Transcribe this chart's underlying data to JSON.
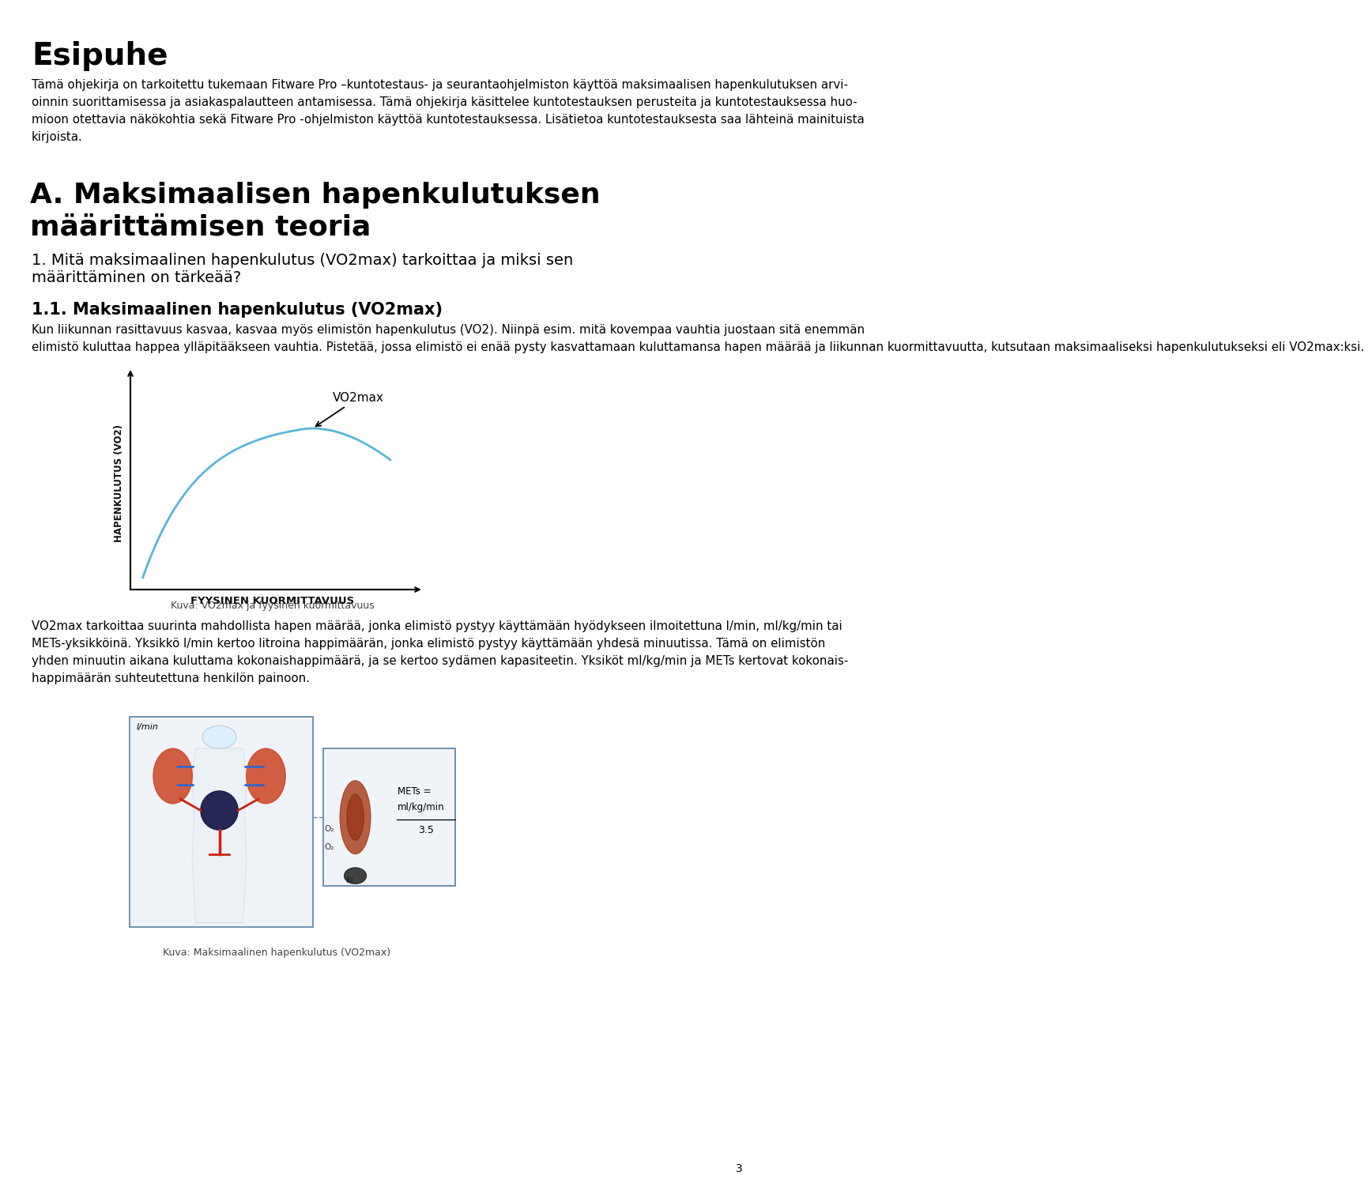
{
  "background_color": "#ffffff",
  "page_number": "3",
  "title_esipuhe": "Esipuhe",
  "para1_lines": [
    "Tämä ohjekirja on tarkoitettu tukemaan Fitware Pro –kuntotestaus- ja seurantaohjelmiston käyttöä maksimaalisen hapenkulutuksen arvi-",
    "oinnin suorittamisessa ja asiakaspalautteen antamisessa. Tämä ohjekirja käsittelee kuntotestauksen perusteita ja kuntotestauksessa huo-",
    "mioon otettavia näkökohtia sekä Fitware Pro -ohjelmiston käyttöä kuntotestauksessa. Lisätietoa kuntotestauksesta saa lähteinä mainituista",
    "kirjoista."
  ],
  "section_a_line1": "A. Maksimaalisen hapenkulutuksen",
  "section_a_line2": "määrittämisen teoria",
  "section_1_line1": "1. Mitä maksimaalinen hapenkulutus (VO2max) tarkoittaa ja miksi sen",
  "section_1_line2": "määrittäminen on tärkeää?",
  "section_11_title": "1.1. Maksimaalinen hapenkulutus (VO2max)",
  "para2_lines": [
    "Kun liikunnan rasittavuus kasvaa, kasvaa myös elimistön hapenkulutus (VO2). Niinpä esim. mitä kovempaa vauhtia juostaan sitä enemmän",
    "elimistö kuluttaa happea ylläpitääkseen vauhtia. Pistetää, jossa elimistö ei enää pysty kasvattamaan kuluttamansa hapen määrää ja liikunnan kuormittavuutta, kutsutaan maksimaaliseksi hapenkulutukseksi eli VO2max:ksi."
  ],
  "caption1": "Kuva: VO2max ja fyysinen kuormittavuus",
  "para3_lines": [
    "VO2max tarkoittaa suurinta mahdollista hapen määrää, jonka elimistö pystyy käyttämään hyödykseen ilmoitettuna l/min, ml/kg/min tai",
    "METs-yksikköinä. Yksikkö l/min kertoo litroina happimäärän, jonka elimistö pystyy käyttämään yhdesä minuutissa. Tämä on elimistön",
    "yhden minuutin aikana kuluttama kokonaishappimäärä, ja se kertoo sydämen kapasiteetin. Yksiköt ml/kg/min ja METs kertovat kokonais-",
    "happimäärän suhteutettuna henkilön painoon."
  ],
  "caption2": "Kuva: Maksimaalinen hapenkulutus (VO2max)",
  "graph_ylabel": "HAPENKULUTUS (VO2)",
  "graph_xlabel": "FYYSINEN KUORMITTAVUUS",
  "graph_annotation": "VO2max",
  "graph_color": "#5ab4d6"
}
